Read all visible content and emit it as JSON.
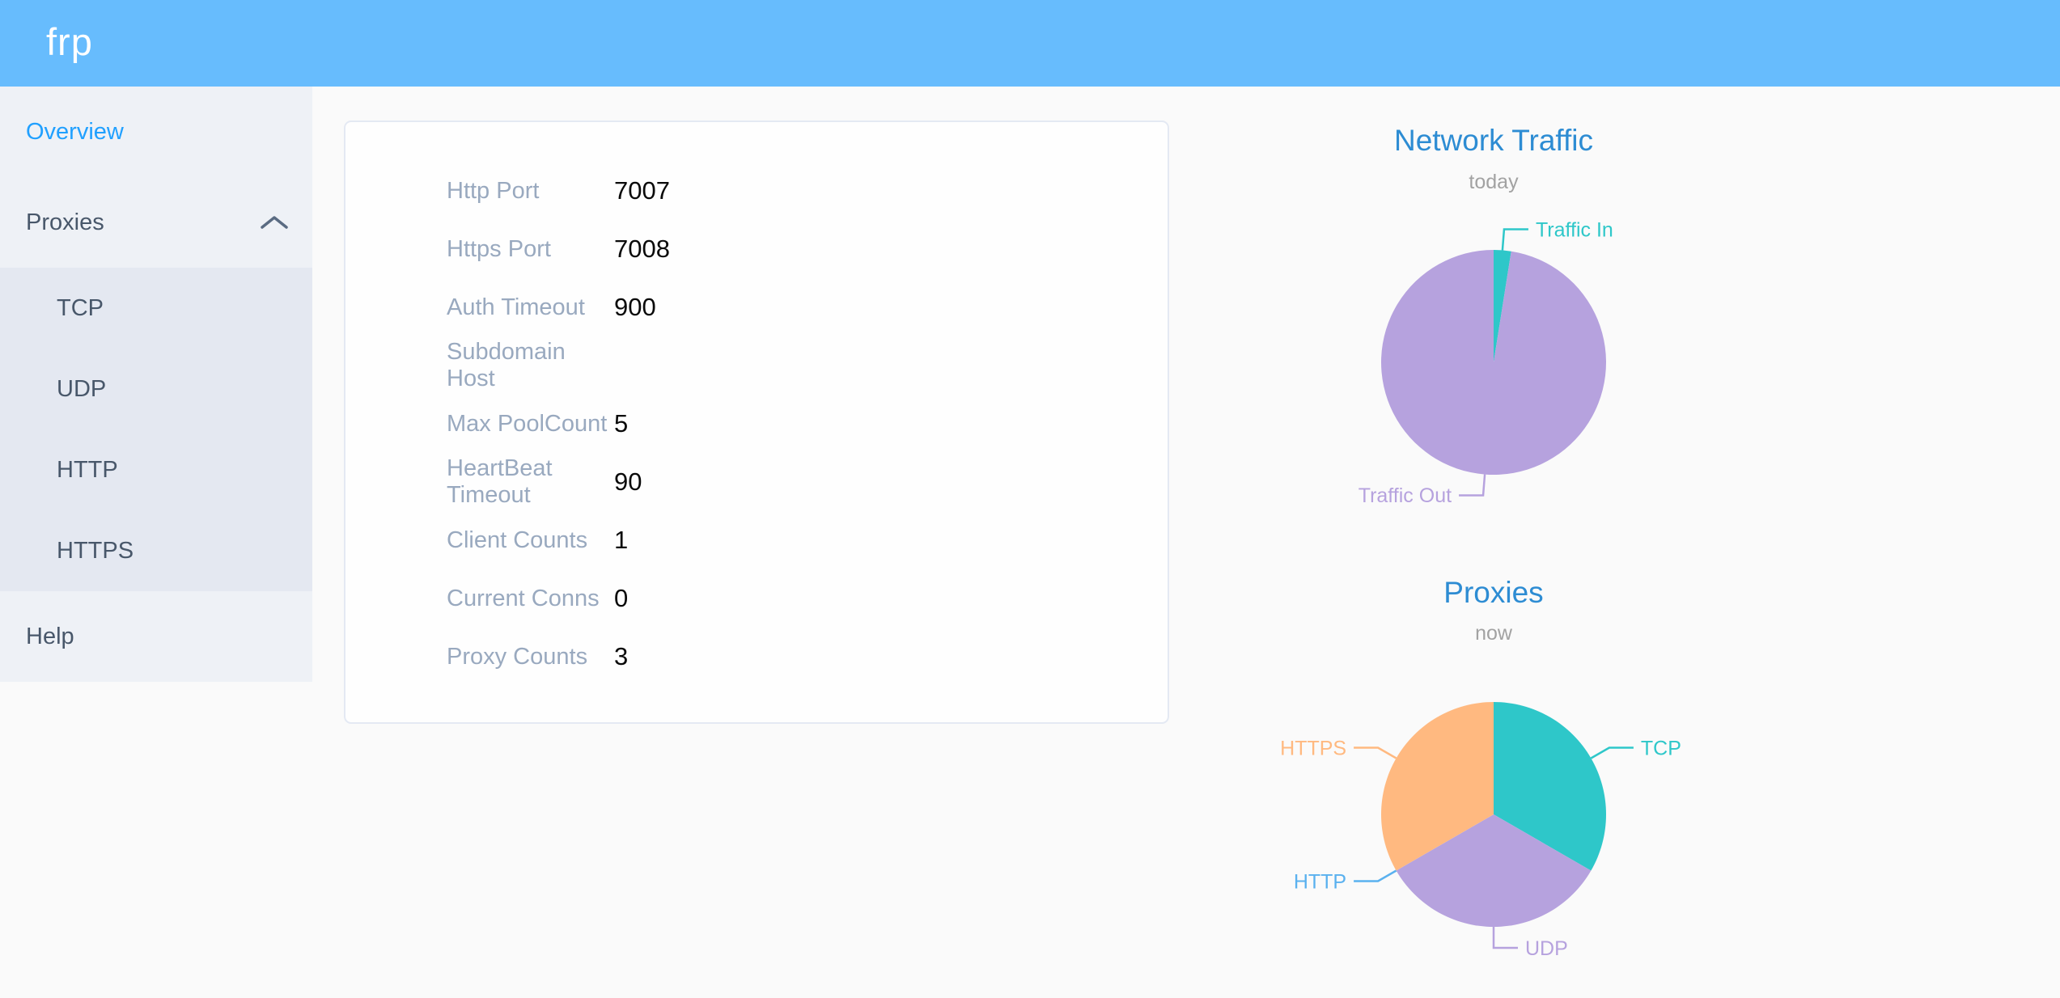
{
  "app": {
    "logo_text": "frp"
  },
  "colors": {
    "header_bg": "#67bcfd",
    "sidebar_bg": "#eef1f6",
    "submenu_bg": "#e4e8f1",
    "menu_text": "#48576a",
    "menu_active": "#20a0ff",
    "card_label": "#99a9bf",
    "chart_title": "#2d8cd3",
    "teal": "#2ec7c9",
    "purple": "#b6a2de",
    "blue": "#5ab1ef",
    "orange": "#ffb980"
  },
  "sidebar": {
    "items": [
      {
        "label": "Overview",
        "active": true
      },
      {
        "label": "Proxies",
        "expanded": true,
        "children": [
          {
            "label": "TCP"
          },
          {
            "label": "UDP"
          },
          {
            "label": "HTTP"
          },
          {
            "label": "HTTPS"
          }
        ]
      },
      {
        "label": "Help"
      }
    ]
  },
  "overview": {
    "rows": [
      {
        "label": "Http Port",
        "value": "7007"
      },
      {
        "label": "Https Port",
        "value": "7008"
      },
      {
        "label": "Auth Timeout",
        "value": "900"
      },
      {
        "label": "Subdomain Host",
        "value": ""
      },
      {
        "label": "Max PoolCount",
        "value": "5"
      },
      {
        "label": "HeartBeat Timeout",
        "value": "90"
      },
      {
        "label": "Client Counts",
        "value": "1"
      },
      {
        "label": "Current Conns",
        "value": "0"
      },
      {
        "label": "Proxy Counts",
        "value": "3"
      }
    ]
  },
  "chart_data": [
    {
      "type": "pie",
      "title": "Network Traffic",
      "subtitle": "today",
      "legend_position": "none",
      "value_units": "percent of total (estimated from arc angles; no numeric labels shown)",
      "series": [
        {
          "name": "Traffic In",
          "value": 2.5,
          "color": "#2ec7c9"
        },
        {
          "name": "Traffic Out",
          "value": 97.5,
          "color": "#b6a2de"
        }
      ]
    },
    {
      "type": "pie",
      "title": "Proxies",
      "subtitle": "now",
      "legend_position": "none",
      "value_units": "proxy counts (total matches 'Proxy Counts' = 3; HTTP slice is zero)",
      "series": [
        {
          "name": "TCP",
          "value": 1,
          "color": "#2ec7c9"
        },
        {
          "name": "UDP",
          "value": 1,
          "color": "#b6a2de"
        },
        {
          "name": "HTTP",
          "value": 0,
          "color": "#5ab1ef"
        },
        {
          "name": "HTTPS",
          "value": 1,
          "color": "#ffb980"
        }
      ]
    }
  ]
}
